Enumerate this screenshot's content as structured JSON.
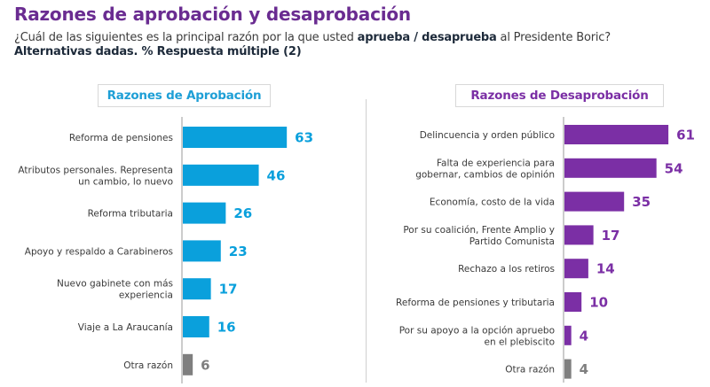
{
  "header": {
    "title": "Razones de aprobación y desaprobación",
    "question_pre": "¿Cuál de las siguientes es la principal razón por la que usted ",
    "question_bold": "aprueba / desaprueba",
    "question_post": " al Presidente Boric?",
    "note": "Alternativas dadas. % Respuesta múltiple (2)"
  },
  "colors": {
    "approval": "#0aa0dc",
    "disapproval": "#7b2fa5",
    "other": "#7f7f7f",
    "title": "#6a2c91"
  },
  "chart_data": [
    {
      "type": "bar",
      "orientation": "horizontal",
      "title": "Razones de Aprobación",
      "categories": [
        [
          "Reforma de pensiones"
        ],
        [
          "Atributos personales. Representa",
          "un cambio, lo nuevo"
        ],
        [
          "Reforma tributaria"
        ],
        [
          "Apoyo y respaldo a Carabineros"
        ],
        [
          "Nuevo gabinete con más",
          "experiencia"
        ],
        [
          "Viaje a La Araucanía"
        ],
        [
          "Otra razón"
        ]
      ],
      "values": [
        63,
        46,
        26,
        23,
        17,
        16,
        6
      ],
      "bar_colors": [
        "approval",
        "approval",
        "approval",
        "approval",
        "approval",
        "approval",
        "other"
      ],
      "unit": "%",
      "xlim": [
        0,
        70
      ],
      "grid": false
    },
    {
      "type": "bar",
      "orientation": "horizontal",
      "title": "Razones de Desaprobación",
      "categories": [
        [
          "Delincuencia y orden público"
        ],
        [
          "Falta de experiencia para",
          "gobernar, cambios de opinión"
        ],
        [
          "Economía, costo de la vida"
        ],
        [
          "Por su coalición, Frente Amplio y",
          "Partido Comunista"
        ],
        [
          "Rechazo a los retiros"
        ],
        [
          "Reforma de pensiones y tributaria"
        ],
        [
          "Por su apoyo a la opción apruebo",
          "en el plebiscito"
        ],
        [
          "Otra razón"
        ]
      ],
      "values": [
        61,
        54,
        35,
        17,
        14,
        10,
        4,
        4
      ],
      "bar_colors": [
        "disapproval",
        "disapproval",
        "disapproval",
        "disapproval",
        "disapproval",
        "disapproval",
        "disapproval",
        "other"
      ],
      "unit": "%",
      "xlim": [
        0,
        70
      ],
      "grid": false
    }
  ]
}
